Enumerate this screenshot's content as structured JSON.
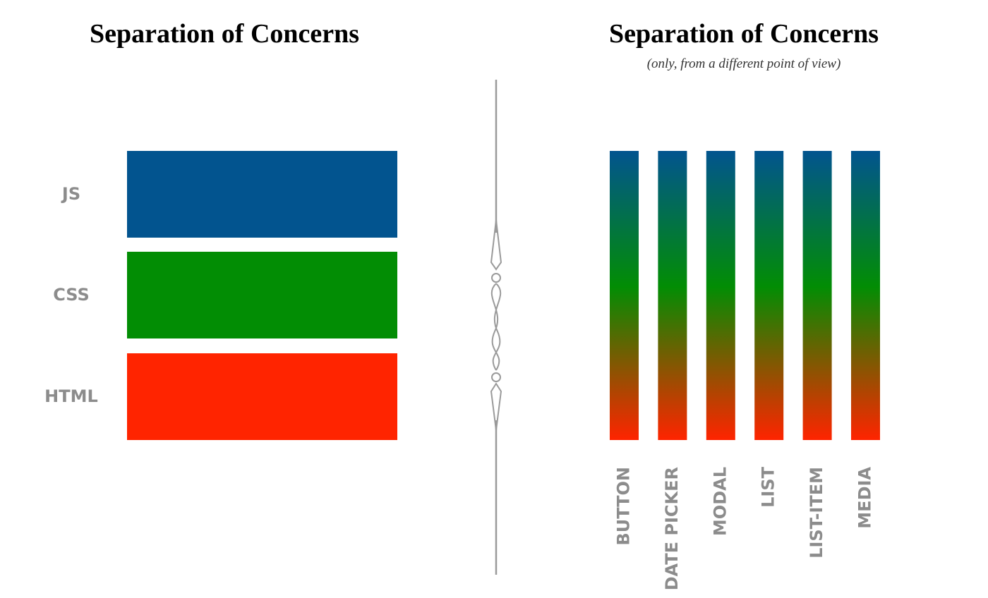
{
  "left": {
    "title": "Separation of Concerns",
    "layers": [
      {
        "label": "JS",
        "color": "#02548f"
      },
      {
        "label": "CSS",
        "color": "#028d04"
      },
      {
        "label": "HTML",
        "color": "#ff2400"
      }
    ]
  },
  "right": {
    "title": "Separation of Concerns",
    "subtitle": "(only, from a different point of view)",
    "components": [
      "BUTTON",
      "DATE PICKER",
      "MODAL",
      "LIST",
      "LIST-ITEM",
      "MEDIA"
    ]
  }
}
